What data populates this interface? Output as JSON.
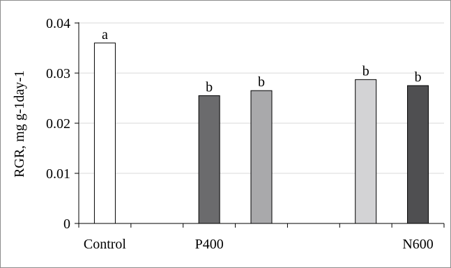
{
  "chart_data": {
    "type": "bar",
    "title": "",
    "xlabel": "",
    "ylabel": "RGR, mg g-1day-1",
    "ylim": [
      0,
      0.04
    ],
    "y_ticks": [
      "0",
      "0.01",
      "0.02",
      "0.03",
      "0.04"
    ],
    "grid": true,
    "x_tick_labels": [
      "Control",
      "P400",
      "N600"
    ],
    "bars": [
      {
        "value": 0.036,
        "label": "a",
        "color": "#ffffff"
      },
      {
        "value": 0.0255,
        "label": "b",
        "color": "#6b6b6d"
      },
      {
        "value": 0.0265,
        "label": "b",
        "color": "#a9a9ab"
      },
      {
        "value": 0.0287,
        "label": "b",
        "color": "#d3d3d5"
      },
      {
        "value": 0.0275,
        "label": "b",
        "color": "#4f4f51"
      }
    ]
  }
}
